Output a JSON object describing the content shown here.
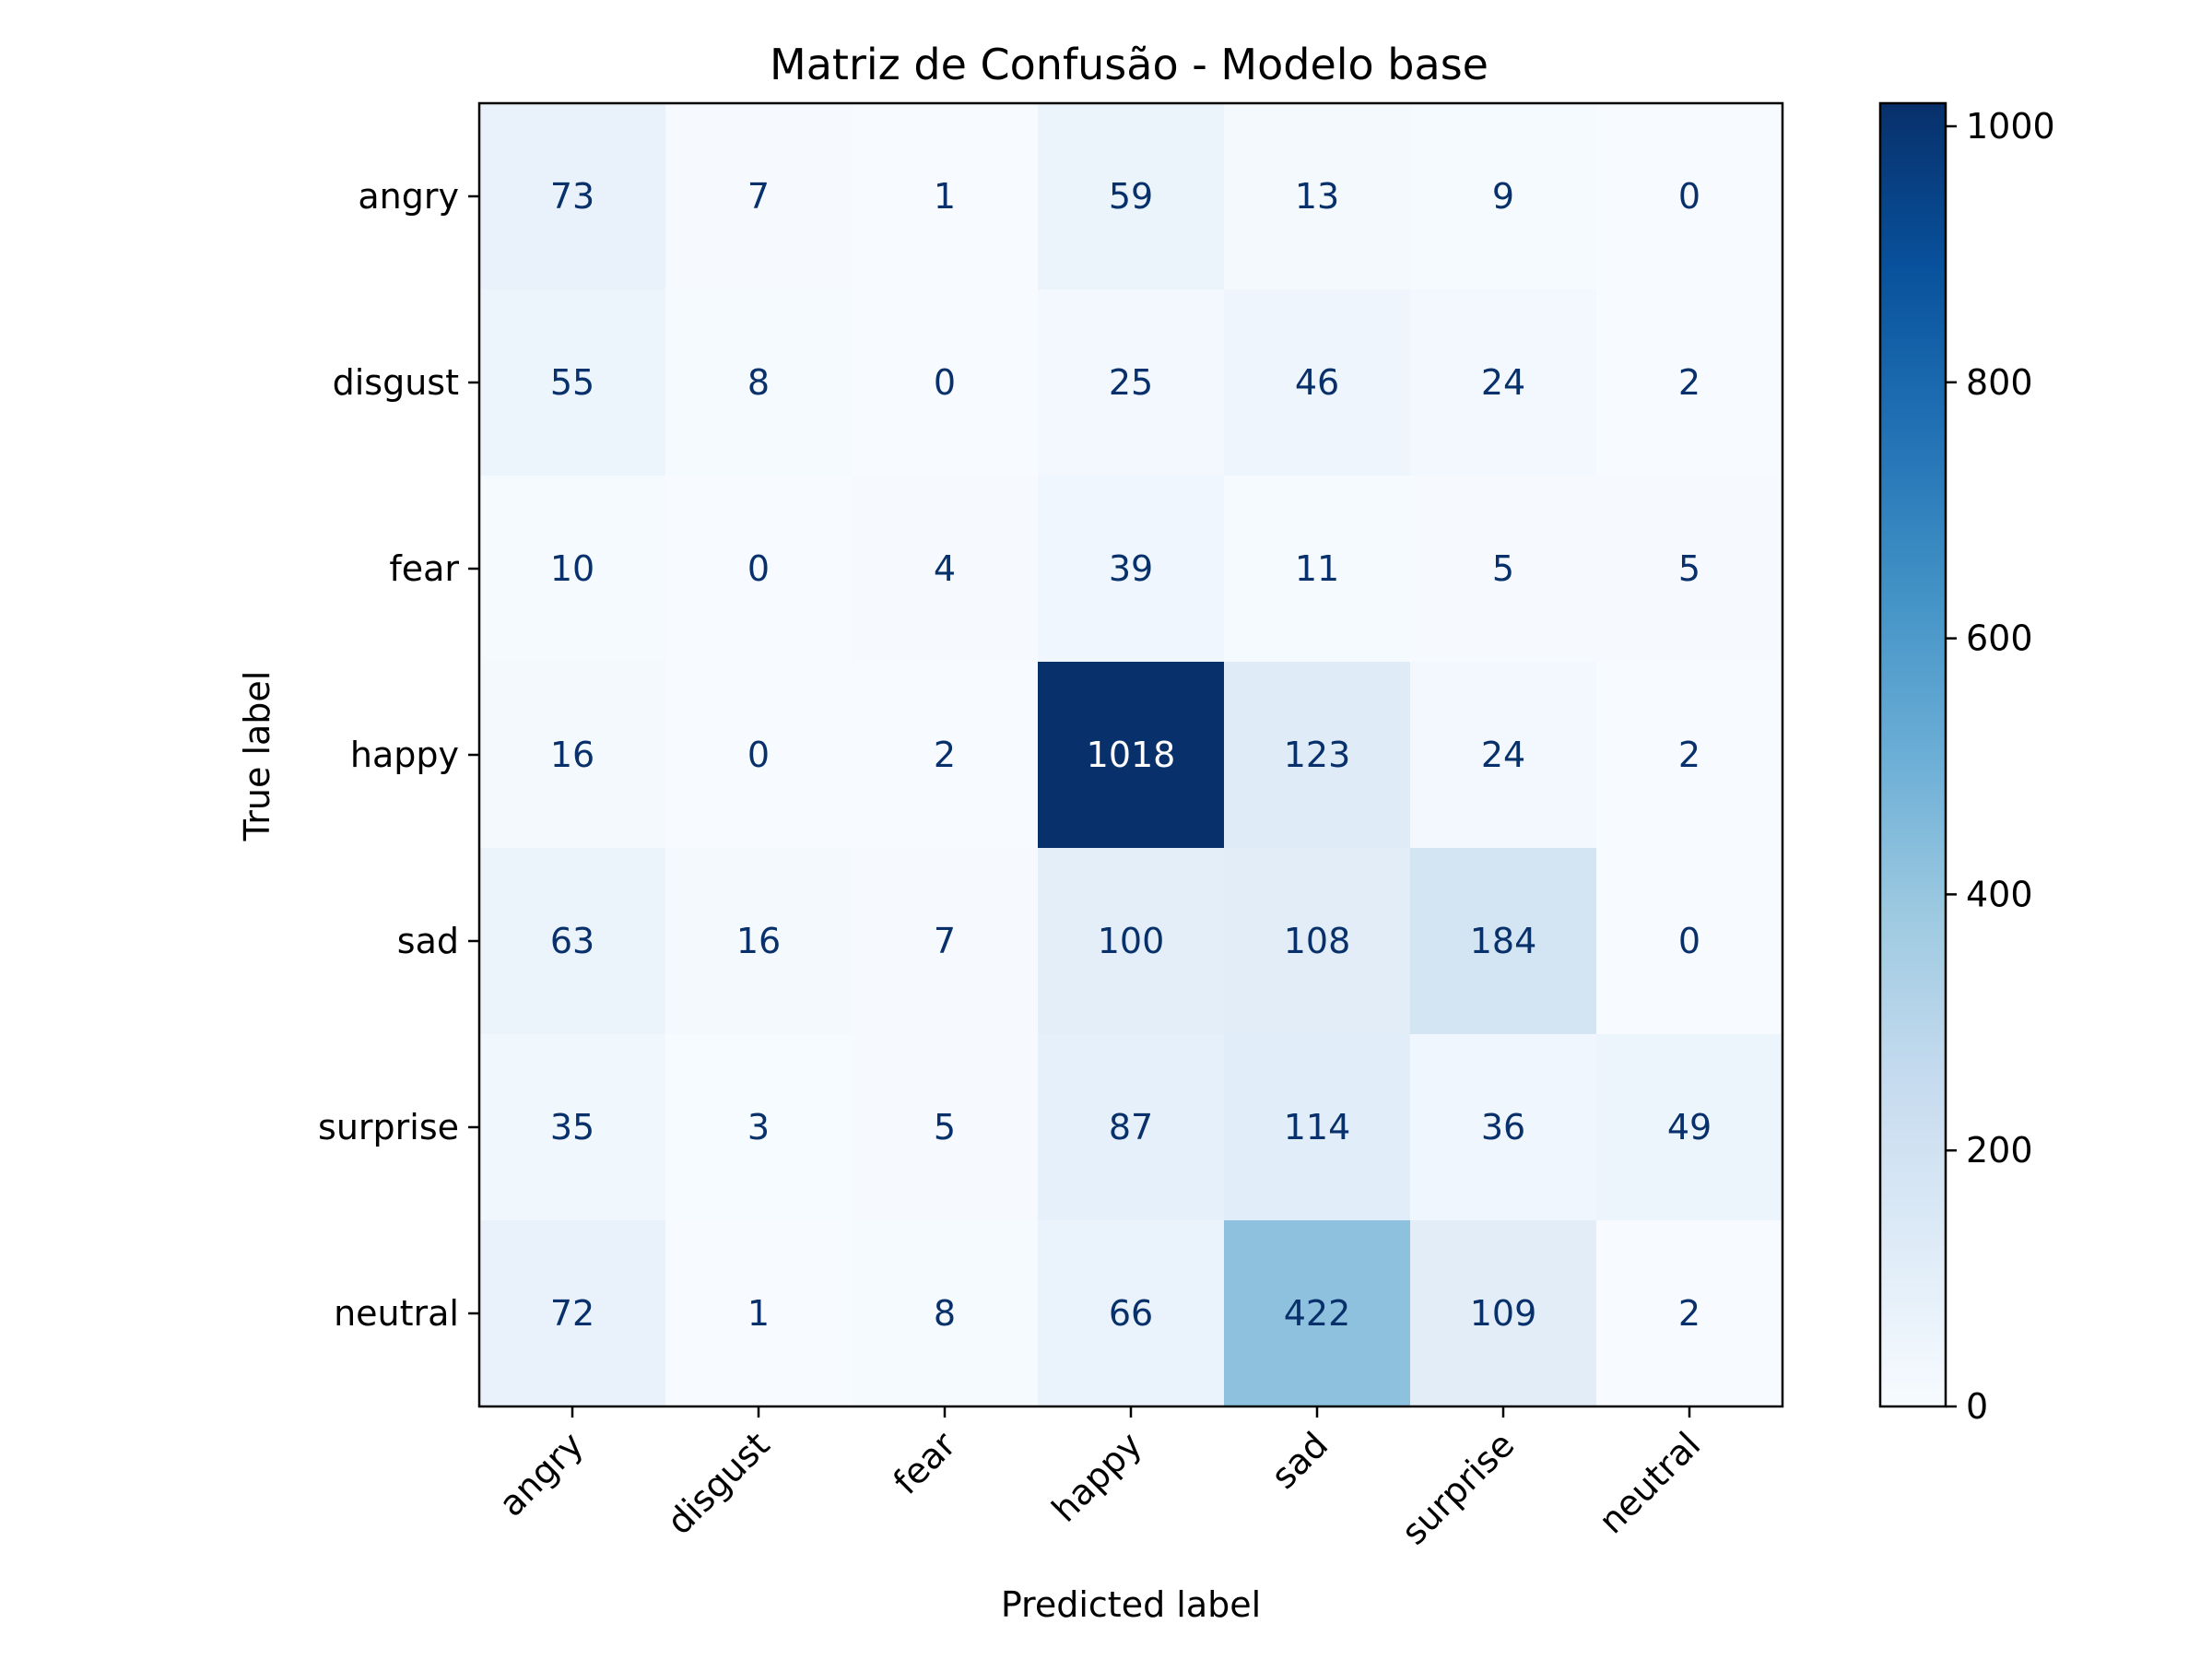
{
  "chart_data": {
    "type": "heatmap",
    "title": "Matriz de Confusão - Modelo base",
    "xlabel": "Predicted label",
    "ylabel": "True label",
    "x_categories": [
      "angry",
      "disgust",
      "fear",
      "happy",
      "sad",
      "surprise",
      "neutral"
    ],
    "y_categories": [
      "angry",
      "disgust",
      "fear",
      "happy",
      "sad",
      "surprise",
      "neutral"
    ],
    "values": [
      [
        73,
        7,
        1,
        59,
        13,
        9,
        0
      ],
      [
        55,
        8,
        0,
        25,
        46,
        24,
        2
      ],
      [
        10,
        0,
        4,
        39,
        11,
        5,
        5
      ],
      [
        16,
        0,
        2,
        1018,
        123,
        24,
        2
      ],
      [
        63,
        16,
        7,
        100,
        108,
        184,
        0
      ],
      [
        35,
        3,
        5,
        87,
        114,
        36,
        49
      ],
      [
        72,
        1,
        8,
        66,
        422,
        109,
        2
      ]
    ],
    "colormap": "Blues",
    "colorbar": {
      "range": [
        0,
        1018
      ],
      "ticks": [
        0,
        200,
        400,
        600,
        800,
        1000
      ]
    },
    "grid": false
  }
}
